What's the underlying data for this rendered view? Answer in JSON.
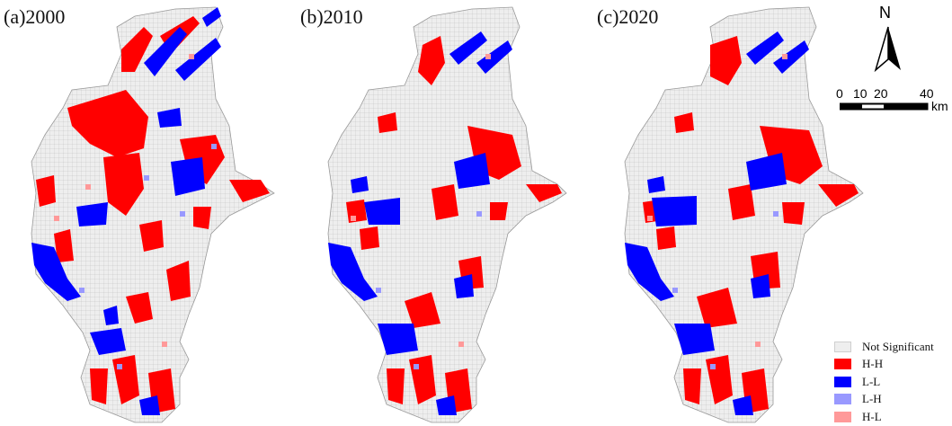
{
  "panels": [
    {
      "label": "(a)2000",
      "year": "2000"
    },
    {
      "label": "(b)2010",
      "year": "2010"
    },
    {
      "label": "(c)2020",
      "year": "2020"
    }
  ],
  "north_arrow": {
    "letter": "N"
  },
  "scale_bar": {
    "ticks": [
      "0",
      "10",
      "20",
      "40"
    ],
    "unit": "km"
  },
  "legend": [
    {
      "label": "Not Significant",
      "color": "#eeeeee"
    },
    {
      "label": "H-H",
      "color": "#ff0000"
    },
    {
      "label": "L-L",
      "color": "#0000ff"
    },
    {
      "label": "L-H",
      "color": "#9999ff"
    },
    {
      "label": "H-L",
      "color": "#ff9999"
    }
  ]
}
